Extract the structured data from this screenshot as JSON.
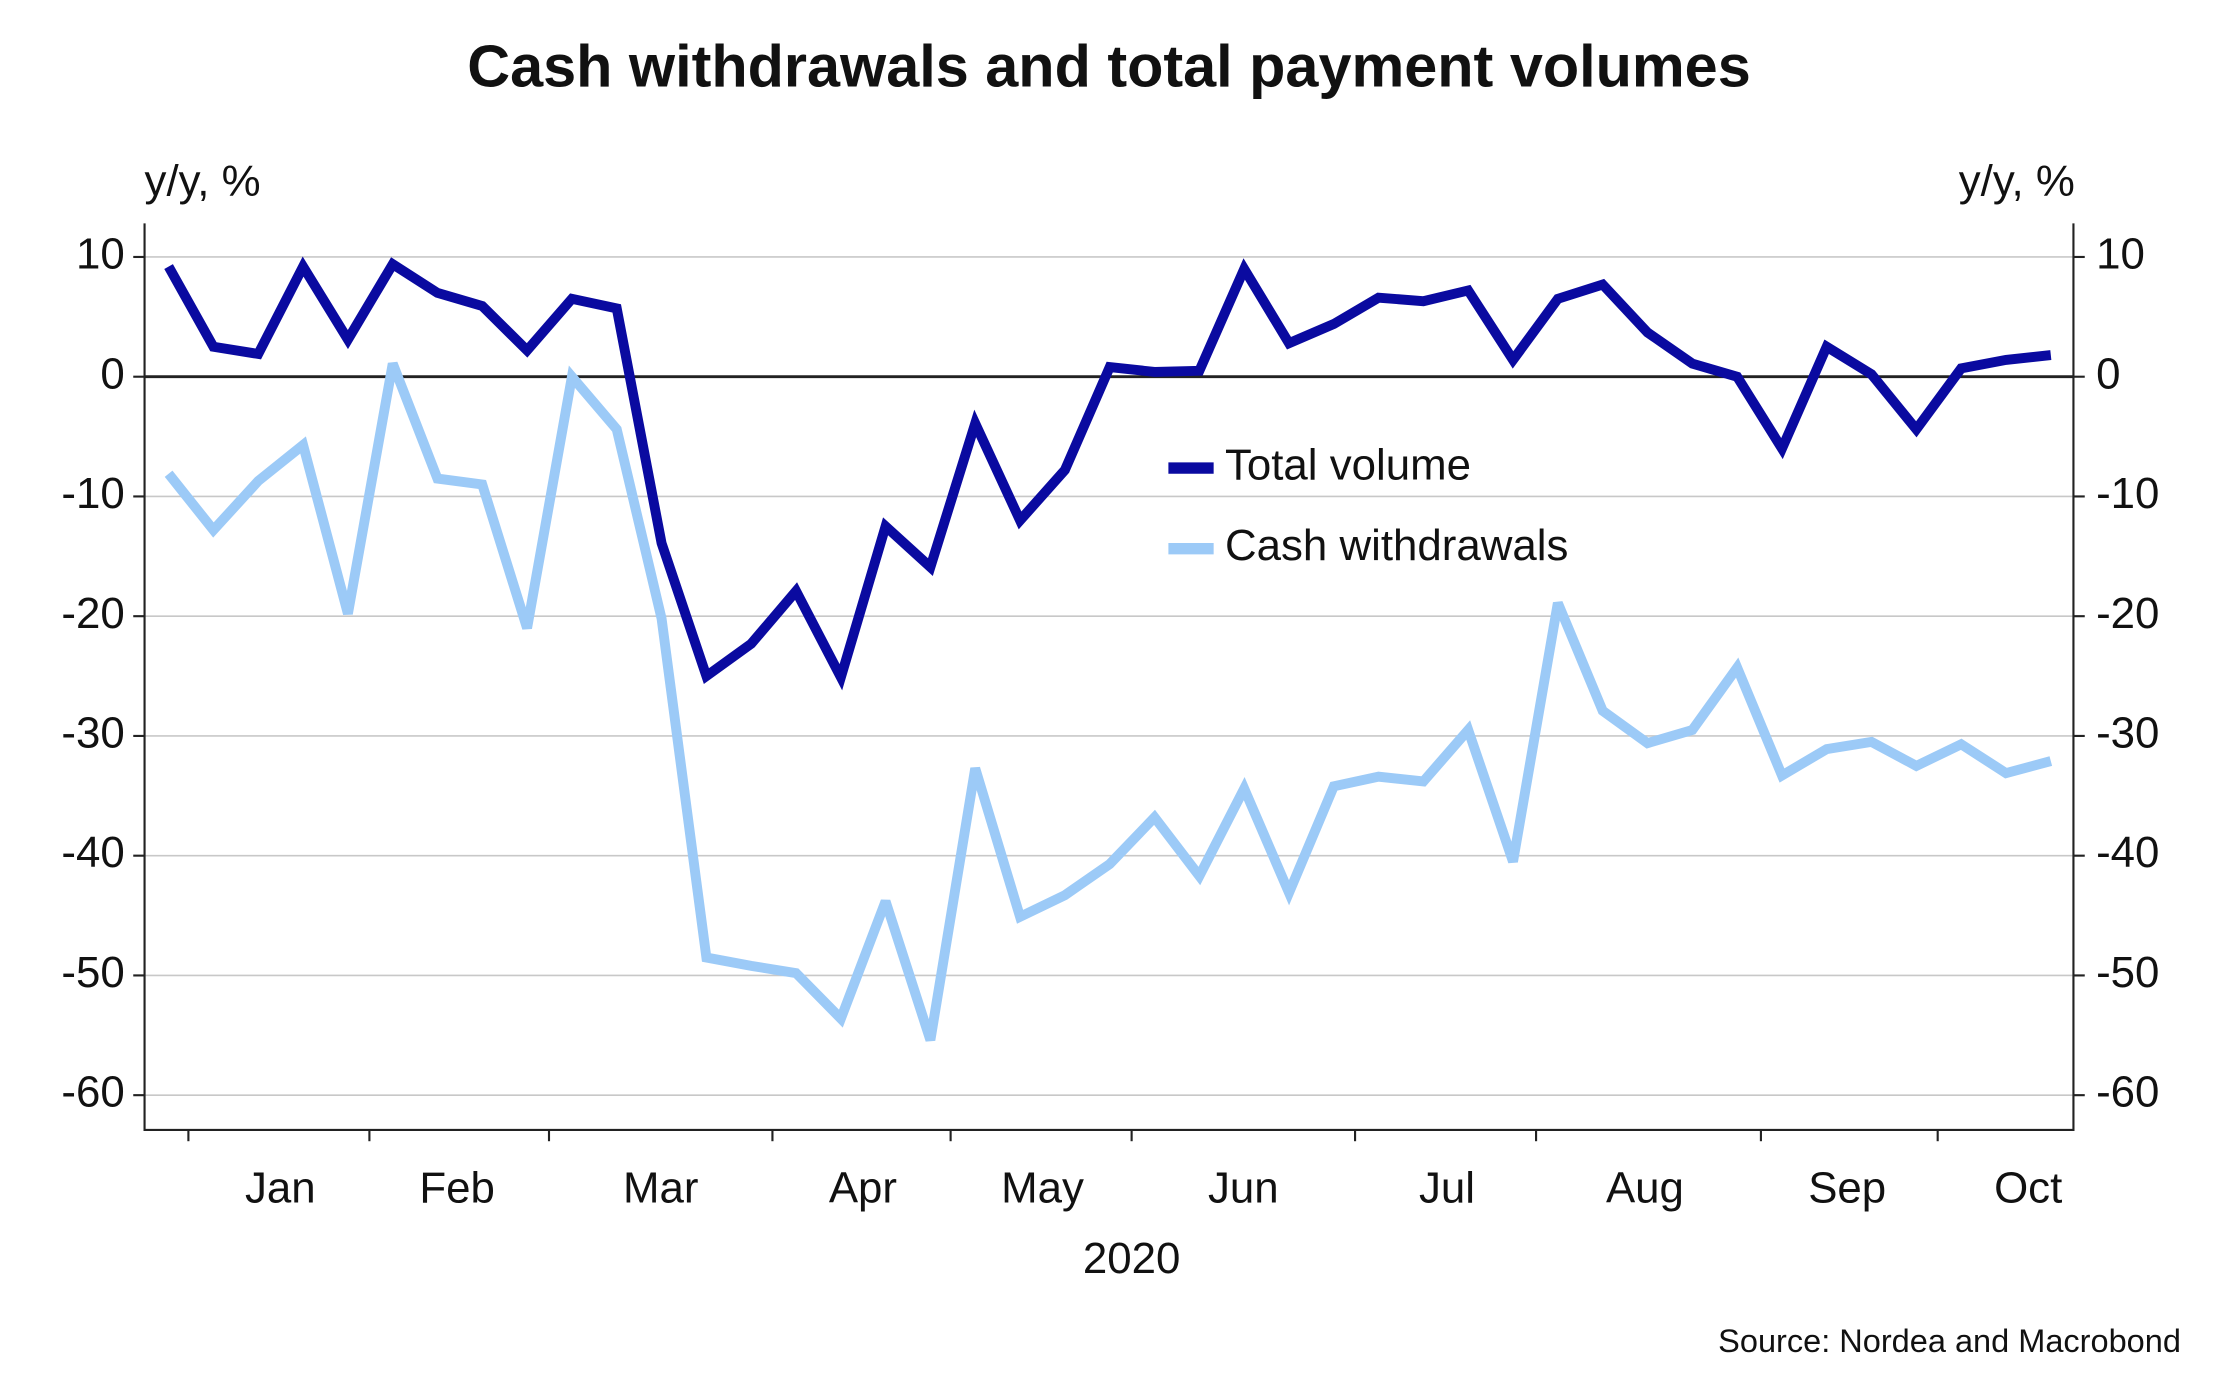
{
  "chart_data": {
    "type": "line",
    "title": "Cash withdrawals and total payment volumes",
    "y_axis_label": "y/y, %",
    "y2_axis_label": "y/y, %",
    "x_axis_label": "2020",
    "source": "Source: Nordea and Macrobond",
    "months": [
      "Jan",
      "Feb",
      "Mar",
      "Apr",
      "May",
      "Jun",
      "Jul",
      "Aug",
      "Sep",
      "Oct"
    ],
    "categories": [
      null,
      null,
      null,
      null,
      null,
      null,
      null,
      null,
      null,
      null,
      null,
      null,
      null,
      null,
      null,
      null,
      null,
      null,
      null,
      null,
      null,
      null,
      null,
      null,
      null,
      null,
      null,
      null,
      null,
      null,
      null,
      null,
      null,
      null,
      null,
      null,
      null,
      null,
      null,
      null,
      null,
      null,
      null
    ],
    "ylim": [
      -62.9,
      12.8
    ],
    "yticks": [
      10,
      0,
      -10,
      -20,
      -30,
      -40,
      -50,
      -60
    ],
    "grid": true,
    "legend": "center",
    "series": [
      {
        "name": "Total volume",
        "color": "#0a0aa0",
        "values": [
          9.2,
          2.5,
          1.9,
          9.2,
          3.1,
          9.4,
          7,
          5.9,
          2.2,
          6.5,
          5.7,
          -13.9,
          -25,
          -22.3,
          -17.9,
          -25.1,
          -12.5,
          -15.9,
          -3.9,
          -12,
          -7.8,
          0.8,
          0.4,
          0.5,
          9,
          2.8,
          4.4,
          6.6,
          6.3,
          7.2,
          1.4,
          6.5,
          7.7,
          3.7,
          1.1,
          0,
          -6,
          2.5,
          0.2,
          -4.4,
          0.7,
          1.4,
          1.8
        ]
      },
      {
        "name": "Cash withdrawals",
        "color": "#9ccaf7",
        "values": [
          -8.1,
          -12.8,
          -8.7,
          -5.7,
          -19.8,
          1.1,
          -8.5,
          -9,
          -21,
          0,
          -4.4,
          -20.2,
          -48.5,
          -49.2,
          -49.8,
          -53.6,
          -43.8,
          -55.4,
          -32.7,
          -45.1,
          -43.3,
          -40.7,
          -36.8,
          -41.7,
          -34.4,
          -43.1,
          -34.2,
          -33.4,
          -33.8,
          -29.5,
          -40.5,
          -18.9,
          -27.9,
          -30.6,
          -29.5,
          -24.3,
          -33.3,
          -31.1,
          -30.5,
          -32.5,
          -30.7,
          -33.1,
          -32.1
        ]
      }
    ]
  }
}
